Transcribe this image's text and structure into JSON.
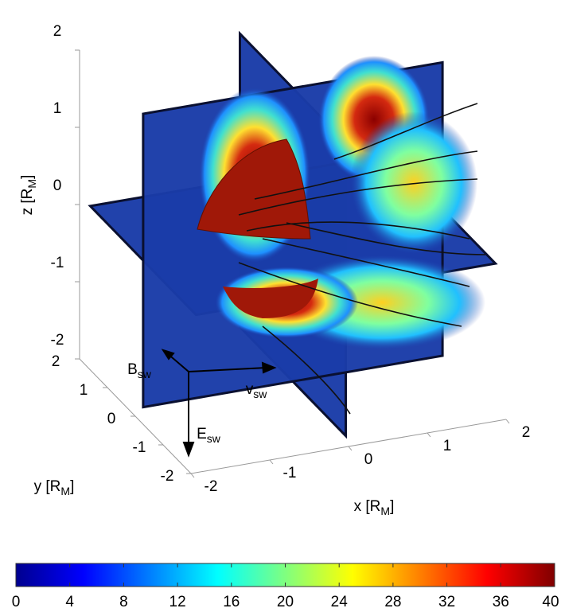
{
  "chart_data": {
    "type": "slice3d",
    "xlabel": {
      "text": "x [R",
      "sub": "M",
      "end": "]"
    },
    "ylabel": {
      "text": "y [R",
      "sub": "M",
      "end": "]"
    },
    "zlabel": {
      "text": "z [R",
      "sub": "M",
      "end": "]"
    },
    "xlim": [
      -2,
      2
    ],
    "ylim": [
      -2,
      2
    ],
    "zlim": [
      -2,
      2
    ],
    "xticks": [
      -2,
      -1,
      0,
      1,
      2
    ],
    "yticks": [
      -2,
      -1,
      0,
      1,
      2
    ],
    "zticks": [
      -2,
      -1,
      0,
      1,
      2
    ],
    "vectors": [
      {
        "text": "B",
        "sub": "sw"
      },
      {
        "text": "v",
        "sub": "sw"
      },
      {
        "text": "E",
        "sub": "sw"
      }
    ],
    "colorbar": {
      "lim": [
        0,
        40
      ],
      "ticks": [
        0,
        4,
        8,
        12,
        16,
        20,
        24,
        28,
        32,
        36,
        40
      ]
    }
  }
}
